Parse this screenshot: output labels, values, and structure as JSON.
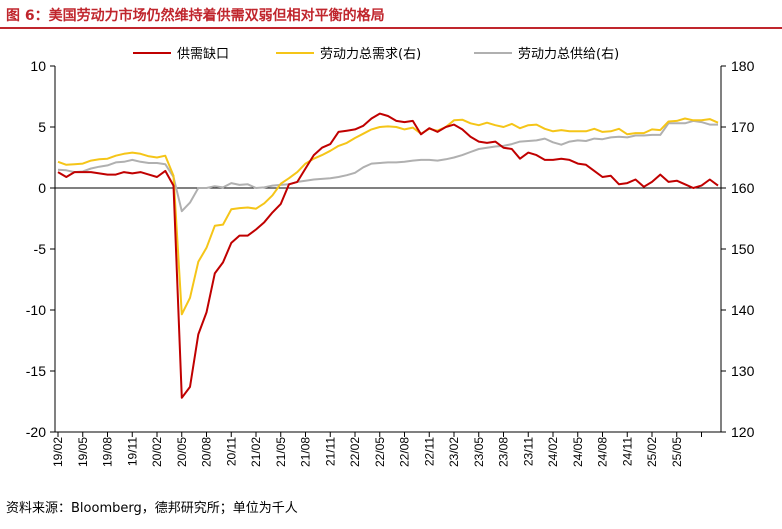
{
  "title": "图 6：美国劳动力市场仍然维持着供需双弱但相对平衡的格局",
  "source": "资料来源：Bloomberg，德邦研究所；单位为千人",
  "colors": {
    "title": "#c0262d",
    "gap": "#c00000",
    "demand": "#f5c518",
    "supply": "#b0b0b0"
  },
  "chart_data": {
    "type": "line",
    "legend_position": "top",
    "grid": false,
    "x_labels": [
      "19/02",
      "19/05",
      "19/08",
      "19/11",
      "20/02",
      "20/05",
      "20/08",
      "20/11",
      "21/02",
      "21/05",
      "21/08",
      "21/11",
      "22/02",
      "22/05",
      "22/08",
      "22/11",
      "23/02",
      "23/05",
      "23/08",
      "23/11",
      "24/02",
      "24/05",
      "24/08",
      "24/11",
      "25/02",
      "25/05"
    ],
    "x_label_step": 3,
    "y_left": {
      "min": -20,
      "max": 10,
      "ticks": [
        10,
        5,
        0,
        -5,
        -10,
        -15,
        -20
      ]
    },
    "y_right": {
      "min": 120,
      "max": 180,
      "ticks": [
        180,
        170,
        160,
        150,
        140,
        130,
        120
      ]
    },
    "series": [
      {
        "name": "供需缺口",
        "axis": "left",
        "color": "#c00000",
        "values": [
          1.3,
          0.9,
          1.3,
          1.3,
          1.3,
          1.2,
          1.1,
          1.1,
          1.3,
          1.2,
          1.3,
          1.1,
          0.9,
          1.4,
          0.2,
          -17.2,
          -16.3,
          -12.0,
          -10.2,
          -7.0,
          -6.1,
          -4.5,
          -3.9,
          -3.9,
          -3.4,
          -2.8,
          -2.0,
          -1.3,
          0.3,
          0.5,
          1.6,
          2.7,
          3.3,
          3.6,
          4.6,
          4.7,
          4.8,
          5.1,
          5.7,
          6.1,
          5.9,
          5.5,
          5.4,
          5.5,
          4.4,
          4.9,
          4.6,
          5.0,
          5.2,
          4.8,
          4.2,
          3.8,
          3.7,
          3.8,
          3.3,
          3.2,
          2.4,
          2.9,
          2.7,
          2.3,
          2.3,
          2.4,
          2.3,
          2.0,
          1.9,
          1.4,
          0.9,
          1.0,
          0.3,
          0.4,
          0.7,
          0.1,
          0.5,
          1.1,
          0.5,
          0.6,
          0.3,
          0.0,
          0.2,
          0.7,
          0.2
        ]
      },
      {
        "name": "劳动力总需求(右)",
        "axis": "right",
        "color": "#f5c518",
        "values": [
          164.3,
          163.8,
          163.9,
          164.0,
          164.5,
          164.7,
          164.8,
          165.3,
          165.6,
          165.8,
          165.6,
          165.2,
          165.0,
          165.3,
          162.0,
          139.3,
          142.0,
          147.9,
          150.2,
          153.8,
          154.0,
          156.5,
          156.7,
          156.8,
          156.6,
          157.5,
          158.8,
          160.7,
          161.6,
          162.6,
          164.0,
          164.8,
          165.4,
          166.1,
          166.9,
          167.4,
          168.2,
          168.9,
          169.6,
          170.0,
          170.1,
          170.0,
          169.6,
          169.9,
          168.9,
          169.7,
          169.4,
          170.0,
          171.1,
          171.2,
          170.6,
          170.3,
          170.7,
          170.3,
          170.0,
          170.5,
          169.8,
          170.3,
          170.4,
          169.7,
          169.3,
          169.5,
          169.3,
          169.3,
          169.3,
          169.7,
          169.2,
          169.3,
          169.7,
          168.8,
          169.0,
          169.0,
          169.6,
          169.5,
          170.9,
          171.0,
          171.4,
          171.1,
          171.1,
          171.3,
          170.7
        ]
      },
      {
        "name": "劳动力总供给(右)",
        "axis": "right",
        "color": "#b0b0b0",
        "values": [
          163.0,
          162.9,
          162.6,
          162.7,
          163.2,
          163.5,
          163.7,
          164.2,
          164.3,
          164.6,
          164.3,
          164.1,
          164.1,
          163.9,
          161.8,
          156.2,
          157.6,
          160.0,
          160.0,
          160.3,
          160.1,
          160.8,
          160.5,
          160.6,
          160.0,
          160.1,
          160.4,
          160.5,
          160.6,
          161.0,
          161.2,
          161.4,
          161.5,
          161.6,
          161.8,
          162.1,
          162.5,
          163.4,
          164.0,
          164.1,
          164.2,
          164.2,
          164.3,
          164.5,
          164.6,
          164.6,
          164.5,
          164.7,
          165.0,
          165.4,
          165.9,
          166.4,
          166.6,
          166.8,
          166.9,
          167.2,
          167.6,
          167.7,
          167.8,
          168.1,
          167.5,
          167.1,
          167.6,
          167.8,
          167.7,
          168.1,
          168.0,
          168.3,
          168.4,
          168.3,
          168.6,
          168.6,
          168.7,
          168.7,
          170.6,
          170.6,
          170.6,
          171.0,
          170.8,
          170.4,
          170.4
        ]
      }
    ]
  }
}
